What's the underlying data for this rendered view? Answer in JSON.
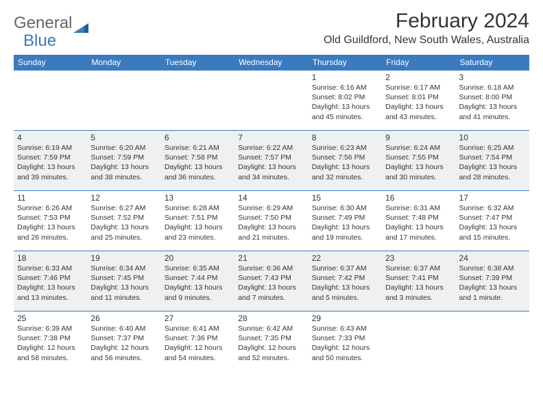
{
  "logo": {
    "part1": "General",
    "part2": "Blue"
  },
  "title": "February 2024",
  "location": "Old Guildford, New South Wales, Australia",
  "day_headers": [
    "Sunday",
    "Monday",
    "Tuesday",
    "Wednesday",
    "Thursday",
    "Friday",
    "Saturday"
  ],
  "colors": {
    "header_bg": "#3a7abf",
    "header_fg": "#ffffff",
    "shaded_bg": "#eef0f2",
    "border": "#3a7abf",
    "text": "#333333"
  },
  "weeks": [
    {
      "shaded": false,
      "days": [
        null,
        null,
        null,
        null,
        {
          "n": "1",
          "sunrise": "6:16 AM",
          "sunset": "8:02 PM",
          "dl": "13 hours and 45 minutes."
        },
        {
          "n": "2",
          "sunrise": "6:17 AM",
          "sunset": "8:01 PM",
          "dl": "13 hours and 43 minutes."
        },
        {
          "n": "3",
          "sunrise": "6:18 AM",
          "sunset": "8:00 PM",
          "dl": "13 hours and 41 minutes."
        }
      ]
    },
    {
      "shaded": true,
      "days": [
        {
          "n": "4",
          "sunrise": "6:19 AM",
          "sunset": "7:59 PM",
          "dl": "13 hours and 39 minutes."
        },
        {
          "n": "5",
          "sunrise": "6:20 AM",
          "sunset": "7:59 PM",
          "dl": "13 hours and 38 minutes."
        },
        {
          "n": "6",
          "sunrise": "6:21 AM",
          "sunset": "7:58 PM",
          "dl": "13 hours and 36 minutes."
        },
        {
          "n": "7",
          "sunrise": "6:22 AM",
          "sunset": "7:57 PM",
          "dl": "13 hours and 34 minutes."
        },
        {
          "n": "8",
          "sunrise": "6:23 AM",
          "sunset": "7:56 PM",
          "dl": "13 hours and 32 minutes."
        },
        {
          "n": "9",
          "sunrise": "6:24 AM",
          "sunset": "7:55 PM",
          "dl": "13 hours and 30 minutes."
        },
        {
          "n": "10",
          "sunrise": "6:25 AM",
          "sunset": "7:54 PM",
          "dl": "13 hours and 28 minutes."
        }
      ]
    },
    {
      "shaded": false,
      "days": [
        {
          "n": "11",
          "sunrise": "6:26 AM",
          "sunset": "7:53 PM",
          "dl": "13 hours and 26 minutes."
        },
        {
          "n": "12",
          "sunrise": "6:27 AM",
          "sunset": "7:52 PM",
          "dl": "13 hours and 25 minutes."
        },
        {
          "n": "13",
          "sunrise": "6:28 AM",
          "sunset": "7:51 PM",
          "dl": "13 hours and 23 minutes."
        },
        {
          "n": "14",
          "sunrise": "6:29 AM",
          "sunset": "7:50 PM",
          "dl": "13 hours and 21 minutes."
        },
        {
          "n": "15",
          "sunrise": "6:30 AM",
          "sunset": "7:49 PM",
          "dl": "13 hours and 19 minutes."
        },
        {
          "n": "16",
          "sunrise": "6:31 AM",
          "sunset": "7:48 PM",
          "dl": "13 hours and 17 minutes."
        },
        {
          "n": "17",
          "sunrise": "6:32 AM",
          "sunset": "7:47 PM",
          "dl": "13 hours and 15 minutes."
        }
      ]
    },
    {
      "shaded": true,
      "days": [
        {
          "n": "18",
          "sunrise": "6:33 AM",
          "sunset": "7:46 PM",
          "dl": "13 hours and 13 minutes."
        },
        {
          "n": "19",
          "sunrise": "6:34 AM",
          "sunset": "7:45 PM",
          "dl": "13 hours and 11 minutes."
        },
        {
          "n": "20",
          "sunrise": "6:35 AM",
          "sunset": "7:44 PM",
          "dl": "13 hours and 9 minutes."
        },
        {
          "n": "21",
          "sunrise": "6:36 AM",
          "sunset": "7:43 PM",
          "dl": "13 hours and 7 minutes."
        },
        {
          "n": "22",
          "sunrise": "6:37 AM",
          "sunset": "7:42 PM",
          "dl": "13 hours and 5 minutes."
        },
        {
          "n": "23",
          "sunrise": "6:37 AM",
          "sunset": "7:41 PM",
          "dl": "13 hours and 3 minutes."
        },
        {
          "n": "24",
          "sunrise": "6:38 AM",
          "sunset": "7:39 PM",
          "dl": "13 hours and 1 minute."
        }
      ]
    },
    {
      "shaded": false,
      "days": [
        {
          "n": "25",
          "sunrise": "6:39 AM",
          "sunset": "7:38 PM",
          "dl": "12 hours and 58 minutes."
        },
        {
          "n": "26",
          "sunrise": "6:40 AM",
          "sunset": "7:37 PM",
          "dl": "12 hours and 56 minutes."
        },
        {
          "n": "27",
          "sunrise": "6:41 AM",
          "sunset": "7:36 PM",
          "dl": "12 hours and 54 minutes."
        },
        {
          "n": "28",
          "sunrise": "6:42 AM",
          "sunset": "7:35 PM",
          "dl": "12 hours and 52 minutes."
        },
        {
          "n": "29",
          "sunrise": "6:43 AM",
          "sunset": "7:33 PM",
          "dl": "12 hours and 50 minutes."
        },
        null,
        null
      ]
    }
  ]
}
